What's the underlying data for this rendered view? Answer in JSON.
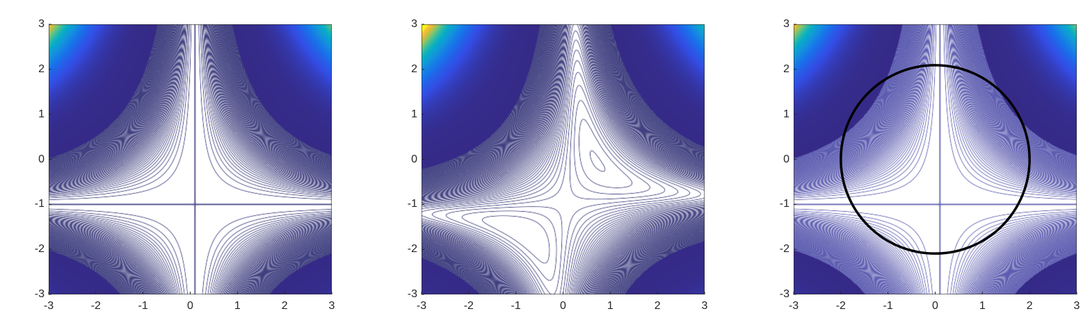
{
  "chart_data": [
    {
      "type": "contour",
      "xlim": [
        -3,
        3
      ],
      "ylim": [
        -3,
        3
      ],
      "xticks": [
        "-3",
        "-2",
        "-1",
        "0",
        "1",
        "2",
        "3"
      ],
      "yticks": [
        "-3",
        "-2",
        "-1",
        "0",
        "1",
        "2",
        "3"
      ],
      "colormap": "parula",
      "contour_color": "#2b2b73"
    },
    {
      "type": "contour",
      "xlim": [
        -3,
        3
      ],
      "ylim": [
        -3,
        3
      ],
      "xticks": [
        "-3",
        "-2",
        "-1",
        "0",
        "1",
        "2",
        "3"
      ],
      "yticks": [
        "-3",
        "-2",
        "-1",
        "0",
        "1",
        "2",
        "3"
      ],
      "colormap": "parula",
      "contour_color": "#2b2b73"
    },
    {
      "type": "contour",
      "xlim": [
        -3,
        3
      ],
      "ylim": [
        -3,
        3
      ],
      "xticks": [
        "-3",
        "-2",
        "-1",
        "0",
        "1",
        "2",
        "3"
      ],
      "yticks": [
        "-3",
        "-2",
        "-1",
        "0",
        "1",
        "2",
        "3"
      ],
      "colormap": "parula",
      "contour_color": "#4a4aa8",
      "overlay_circle": {
        "center": [
          0,
          0
        ],
        "radius": 2,
        "color": "#000000"
      }
    }
  ]
}
